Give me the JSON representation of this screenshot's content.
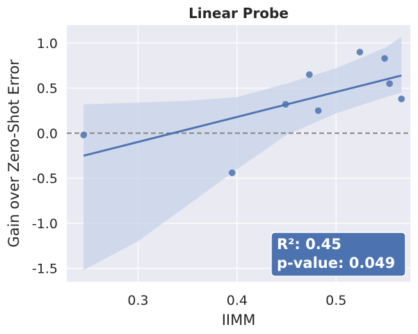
{
  "chart_data": {
    "type": "scatter",
    "title": "Linear Probe",
    "xlabel": "IIMM",
    "ylabel": "Gain over Zero-Shot Error",
    "xlim": [
      0.228,
      0.575
    ],
    "ylim": [
      -1.65,
      1.2
    ],
    "xticks": [
      0.3,
      0.4,
      0.5
    ],
    "xtick_labels": [
      "0.3",
      "0.4",
      "0.5"
    ],
    "yticks": [
      -1.5,
      -1.0,
      -0.5,
      0.0,
      0.5,
      1.0
    ],
    "ytick_labels": [
      "-1.5",
      "-1.0",
      "-0.5",
      "0.0",
      "0.5",
      "1.0"
    ],
    "grid": true,
    "reference_line_y": 0.0,
    "points": [
      {
        "x": 0.245,
        "y": -0.02
      },
      {
        "x": 0.395,
        "y": -0.44
      },
      {
        "x": 0.449,
        "y": 0.32
      },
      {
        "x": 0.473,
        "y": 0.65
      },
      {
        "x": 0.482,
        "y": 0.25
      },
      {
        "x": 0.524,
        "y": 0.9
      },
      {
        "x": 0.549,
        "y": 0.83
      },
      {
        "x": 0.554,
        "y": 0.55
      },
      {
        "x": 0.566,
        "y": 0.38
      }
    ],
    "regression_line": {
      "x": [
        0.245,
        0.566
      ],
      "y": [
        -0.25,
        0.64
      ]
    },
    "confidence_band": {
      "x": [
        0.245,
        0.3,
        0.35,
        0.4,
        0.45,
        0.5,
        0.55,
        0.566
      ],
      "upper": [
        0.32,
        0.34,
        0.36,
        0.4,
        0.55,
        0.72,
        0.95,
        1.07
      ],
      "lower": [
        -1.52,
        -1.2,
        -0.8,
        -0.4,
        -0.02,
        0.22,
        0.4,
        0.45
      ]
    },
    "annotation": {
      "r2_label": "R²: 0.45",
      "p_label": "p-value: 0.049"
    },
    "colors": {
      "point": "#4c72b0",
      "line": "#4c72b0",
      "band": "#c7d2e8",
      "plot_bg": "#eaeaf2",
      "grid": "#ffffff",
      "reference_line": "#7a7a7a",
      "stats_box": "#4c72b0"
    }
  }
}
